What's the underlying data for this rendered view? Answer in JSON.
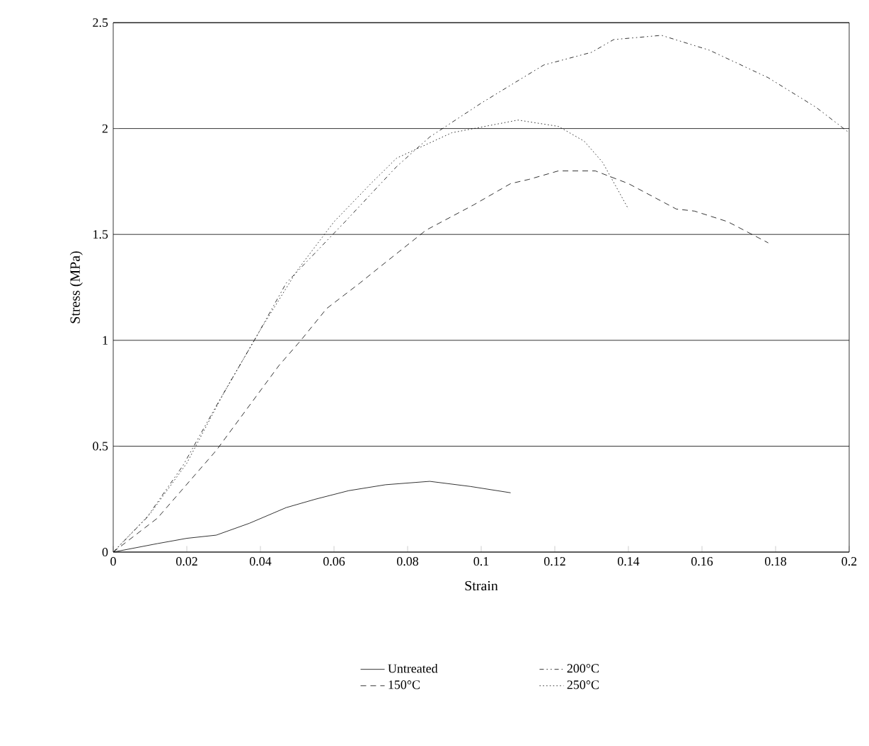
{
  "chart_data": {
    "type": "line",
    "xlabel": "Strain",
    "ylabel": "Stress (MPa)",
    "xlim": [
      0,
      0.2
    ],
    "ylim": [
      0,
      2.5
    ],
    "xticks": [
      0,
      0.02,
      0.04,
      0.06,
      0.08,
      0.1,
      0.12,
      0.14,
      0.16,
      0.18,
      0.2
    ],
    "yticks": [
      0,
      0.5,
      1,
      1.5,
      2,
      2.5
    ],
    "grid": "y",
    "legend": "bottom",
    "marker": "none",
    "series": [
      {
        "name": "Untreated",
        "color": "#000000",
        "line_style": "solid",
        "x": [
          0,
          0.012,
          0.02,
          0.028,
          0.037,
          0.047,
          0.055,
          0.064,
          0.074,
          0.086,
          0.097,
          0.108
        ],
        "values": [
          0,
          0.04,
          0.065,
          0.08,
          0.136,
          0.21,
          0.25,
          0.29,
          0.318,
          0.334,
          0.31,
          0.28
        ]
      },
      {
        "name": "150°C",
        "color": "#000000",
        "line_style": "dashed",
        "x": [
          0,
          0.012,
          0.028,
          0.045,
          0.051,
          0.058,
          0.067,
          0.072,
          0.085,
          0.098,
          0.108,
          0.113,
          0.121,
          0.131,
          0.14,
          0.153,
          0.158,
          0.167,
          0.178
        ],
        "values": [
          0,
          0.16,
          0.48,
          0.88,
          1.0,
          1.15,
          1.27,
          1.34,
          1.52,
          1.64,
          1.74,
          1.76,
          1.8,
          1.8,
          1.74,
          1.62,
          1.61,
          1.56,
          1.46
        ]
      },
      {
        "name": "200°C",
        "color": "#000000",
        "line_style": "dashdot",
        "x": [
          0,
          0.009,
          0.019,
          0.028,
          0.039,
          0.047,
          0.063,
          0.077,
          0.086,
          0.1,
          0.117,
          0.13,
          0.136,
          0.149,
          0.162,
          0.178,
          0.191,
          0.2
        ],
        "values": [
          0,
          0.16,
          0.41,
          0.69,
          1.02,
          1.27,
          1.56,
          1.82,
          1.96,
          2.12,
          2.3,
          2.36,
          2.42,
          2.44,
          2.37,
          2.24,
          2.1,
          1.98
        ]
      },
      {
        "name": "250°C",
        "color": "#000000",
        "line_style": "dotted",
        "x": [
          0,
          0.01,
          0.02,
          0.03,
          0.04,
          0.05,
          0.06,
          0.07,
          0.077,
          0.092,
          0.11,
          0.121,
          0.128,
          0.133,
          0.14
        ],
        "values": [
          0,
          0.18,
          0.42,
          0.75,
          1.05,
          1.33,
          1.56,
          1.74,
          1.86,
          1.98,
          2.04,
          2.01,
          1.94,
          1.84,
          1.62
        ]
      }
    ]
  }
}
